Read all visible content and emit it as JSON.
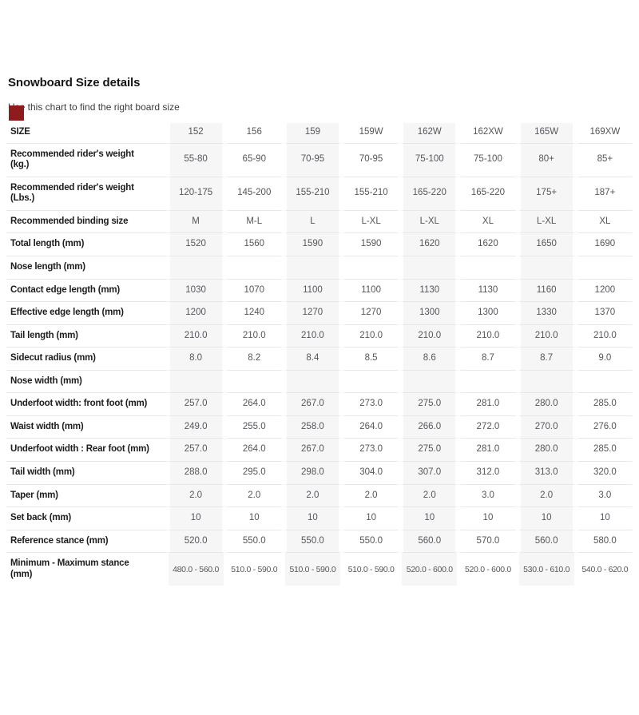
{
  "header": {
    "title": "Snowboard Size details",
    "subtitle": "Use this chart to find the right board size"
  },
  "colors": {
    "swatch": "#8e1c1c",
    "stripe": "#f6f6f7",
    "row_border": "#e8e8ea",
    "label_text": "#1d1d1f",
    "value_text": "#54565b"
  },
  "table": {
    "size_label": "SIZE",
    "sizes": [
      "152",
      "156",
      "159",
      "159W",
      "162W",
      "162XW",
      "165W",
      "169XW"
    ],
    "rows": [
      {
        "label": "Recommended rider's weight",
        "label2": "(kg.)",
        "values": [
          "55-80",
          "65-90",
          "70-95",
          "70-95",
          "75-100",
          "75-100",
          "80+",
          "85+"
        ]
      },
      {
        "label": "Recommended rider's weight",
        "label2": "(Lbs.)",
        "values": [
          "120-175",
          "145-200",
          "155-210",
          "155-210",
          "165-220",
          "165-220",
          "175+",
          "187+"
        ]
      },
      {
        "label": "Recommended binding size",
        "label2": "",
        "values": [
          "M",
          "M-L",
          "L",
          "L-XL",
          "L-XL",
          "XL",
          "L-XL",
          "XL"
        ]
      },
      {
        "label": "Total length (mm)",
        "label2": "",
        "values": [
          "1520",
          "1560",
          "1590",
          "1590",
          "1620",
          "1620",
          "1650",
          "1690"
        ]
      },
      {
        "label": "Nose length (mm)",
        "label2": "",
        "values": [
          "",
          "",
          "",
          "",
          "",
          "",
          "",
          ""
        ]
      },
      {
        "label": "Contact edge length (mm)",
        "label2": "",
        "values": [
          "1030",
          "1070",
          "1100",
          "1100",
          "1130",
          "1130",
          "1160",
          "1200"
        ]
      },
      {
        "label": "Effective edge length (mm)",
        "label2": "",
        "values": [
          "1200",
          "1240",
          "1270",
          "1270",
          "1300",
          "1300",
          "1330",
          "1370"
        ]
      },
      {
        "label": "Tail length (mm)",
        "label2": "",
        "values": [
          "210.0",
          "210.0",
          "210.0",
          "210.0",
          "210.0",
          "210.0",
          "210.0",
          "210.0"
        ]
      },
      {
        "label": "Sidecut radius (mm)",
        "label2": "",
        "values": [
          "8.0",
          "8.2",
          "8.4",
          "8.5",
          "8.6",
          "8.7",
          "8.7",
          "9.0"
        ]
      },
      {
        "label": "Nose width (mm)",
        "label2": "",
        "values": [
          "",
          "",
          "",
          "",
          "",
          "",
          "",
          ""
        ]
      },
      {
        "label": "Underfoot width: front foot (mm)",
        "label2": "",
        "values": [
          "257.0",
          "264.0",
          "267.0",
          "273.0",
          "275.0",
          "281.0",
          "280.0",
          "285.0"
        ]
      },
      {
        "label": "Waist width (mm)",
        "label2": "",
        "values": [
          "249.0",
          "255.0",
          "258.0",
          "264.0",
          "266.0",
          "272.0",
          "270.0",
          "276.0"
        ]
      },
      {
        "label": "Underfoot width : Rear foot (mm)",
        "label2": "",
        "values": [
          "257.0",
          "264.0",
          "267.0",
          "273.0",
          "275.0",
          "281.0",
          "280.0",
          "285.0"
        ]
      },
      {
        "label": "Tail width (mm)",
        "label2": "",
        "values": [
          "288.0",
          "295.0",
          "298.0",
          "304.0",
          "307.0",
          "312.0",
          "313.0",
          "320.0"
        ]
      },
      {
        "label": "Taper (mm)",
        "label2": "",
        "values": [
          "2.0",
          "2.0",
          "2.0",
          "2.0",
          "2.0",
          "3.0",
          "2.0",
          "3.0"
        ]
      },
      {
        "label": "Set back (mm)",
        "label2": "",
        "values": [
          "10",
          "10",
          "10",
          "10",
          "10",
          "10",
          "10",
          "10"
        ]
      },
      {
        "label": "Reference stance (mm)",
        "label2": "",
        "values": [
          "520.0",
          "550.0",
          "550.0",
          "550.0",
          "560.0",
          "570.0",
          "560.0",
          "580.0"
        ]
      },
      {
        "label": "Minimum - Maximum stance",
        "label2": "(mm)",
        "values": [
          "480.0 - 560.0",
          "510.0 - 590.0",
          "510.0 - 590.0",
          "510.0 - 590.0",
          "520.0 - 600.0",
          "520.0 - 600.0",
          "530.0 - 610.0",
          "540.0 - 620.0"
        ]
      }
    ]
  }
}
